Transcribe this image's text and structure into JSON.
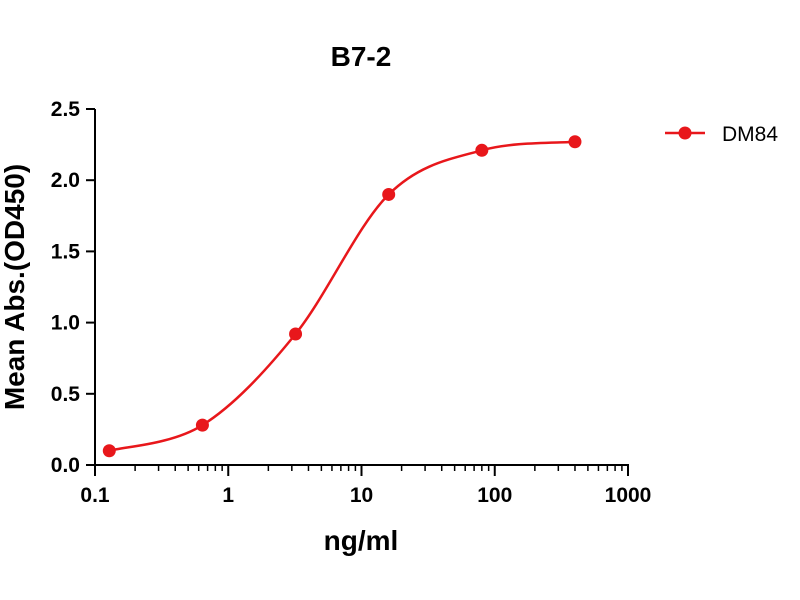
{
  "chart_data": {
    "type": "line",
    "title": "B7-2",
    "xlabel": "ng/ml",
    "ylabel": "Mean Abs.(OD450)",
    "x_scale": "log",
    "xlim": [
      0.1,
      1000
    ],
    "ylim": [
      0,
      2.5
    ],
    "x_ticks": [
      0.1,
      1,
      10,
      100,
      1000
    ],
    "x_tick_labels": [
      "0.1",
      "1",
      "10",
      "100",
      "1000"
    ],
    "y_ticks": [
      0,
      0.5,
      1,
      1.5,
      2,
      2.5
    ],
    "y_tick_labels": [
      "0.0",
      "0.5",
      "1.0",
      "1.5",
      "2.0",
      "2.5"
    ],
    "grid": false,
    "legend_position": "top-right",
    "series": [
      {
        "name": "DM84",
        "color": "#e8171b",
        "marker": "circle",
        "x": [
          0.128,
          0.64,
          3.2,
          16,
          80,
          400
        ],
        "y": [
          0.1,
          0.28,
          0.92,
          1.9,
          2.21,
          2.27
        ]
      }
    ]
  }
}
